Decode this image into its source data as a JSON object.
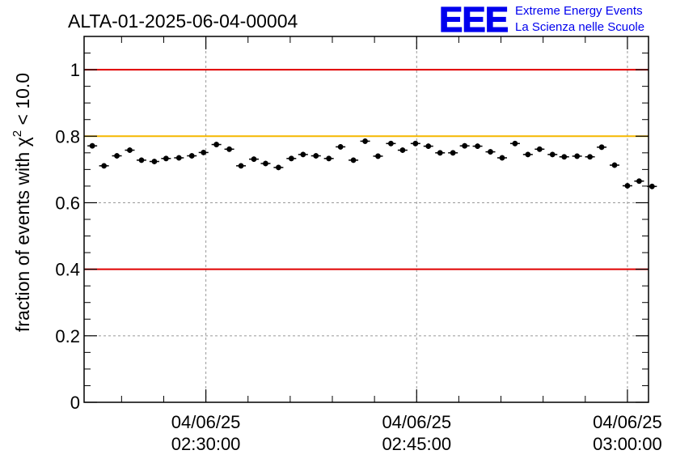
{
  "header": {
    "run_title": "ALTA-01-2025-06-04-00004"
  },
  "logo": {
    "letters": "EEE",
    "line1": "Extreme Energy Events",
    "line2": "La Scienza nelle Scuole",
    "color": "#0000ee"
  },
  "chart_data": {
    "type": "scatter",
    "title": "ALTA-01-2025-06-04-00004",
    "ylabel": "fraction of events with χ² < 10.0",
    "xlabel": "",
    "ylim": [
      0,
      1.1
    ],
    "y_ticks": [
      0,
      0.2,
      0.4,
      0.6,
      0.8,
      1
    ],
    "y_tick_labels": [
      "0",
      "0.2",
      "0.4",
      "0.6",
      "0.8",
      "1"
    ],
    "x_range": [
      "02:21:20",
      "03:01:30"
    ],
    "x_ticks": [
      "02:30:00",
      "02:45:00",
      "03:00:00"
    ],
    "x_tick_labels": [
      {
        "date": "04/06/25",
        "time": "02:30:00"
      },
      {
        "date": "04/06/25",
        "time": "02:45:00"
      },
      {
        "date": "04/06/25",
        "time": "03:00:00"
      }
    ],
    "grid": true,
    "reference_lines": [
      {
        "y": 1.0,
        "color": "#e00000"
      },
      {
        "y": 0.8,
        "color": "#f5b800"
      },
      {
        "y": 0.4,
        "color": "#e00000"
      }
    ],
    "series": [
      {
        "marker_color": "#000000",
        "x": [
          "02:21:55",
          "02:22:45",
          "02:23:40",
          "02:24:35",
          "02:25:25",
          "02:26:20",
          "02:27:10",
          "02:28:05",
          "02:29:00",
          "02:29:50",
          "02:30:45",
          "02:31:40",
          "02:32:30",
          "02:33:25",
          "02:34:15",
          "02:35:10",
          "02:36:05",
          "02:36:55",
          "02:37:50",
          "02:38:45",
          "02:39:35",
          "02:40:30",
          "02:41:20",
          "02:42:15",
          "02:43:10",
          "02:44:00",
          "02:44:55",
          "02:45:50",
          "02:46:40",
          "02:47:35",
          "02:48:25",
          "02:49:20",
          "02:50:15",
          "02:51:05",
          "02:52:00",
          "02:52:55",
          "02:53:45",
          "02:54:40",
          "02:55:30",
          "02:56:25",
          "02:57:20",
          "02:58:10",
          "02:59:05",
          "03:00:00",
          "03:00:50",
          "03:01:45"
        ],
        "y": [
          0.771,
          0.711,
          0.741,
          0.758,
          0.728,
          0.724,
          0.733,
          0.735,
          0.741,
          0.751,
          0.775,
          0.761,
          0.711,
          0.731,
          0.718,
          0.706,
          0.733,
          0.745,
          0.741,
          0.733,
          0.768,
          0.728,
          0.785,
          0.74,
          0.778,
          0.758,
          0.778,
          0.77,
          0.75,
          0.75,
          0.771,
          0.77,
          0.753,
          0.735,
          0.778,
          0.745,
          0.761,
          0.745,
          0.738,
          0.74,
          0.738,
          0.767,
          0.713,
          0.651,
          0.665,
          0.649
        ],
        "y_error": 0.008
      }
    ]
  }
}
